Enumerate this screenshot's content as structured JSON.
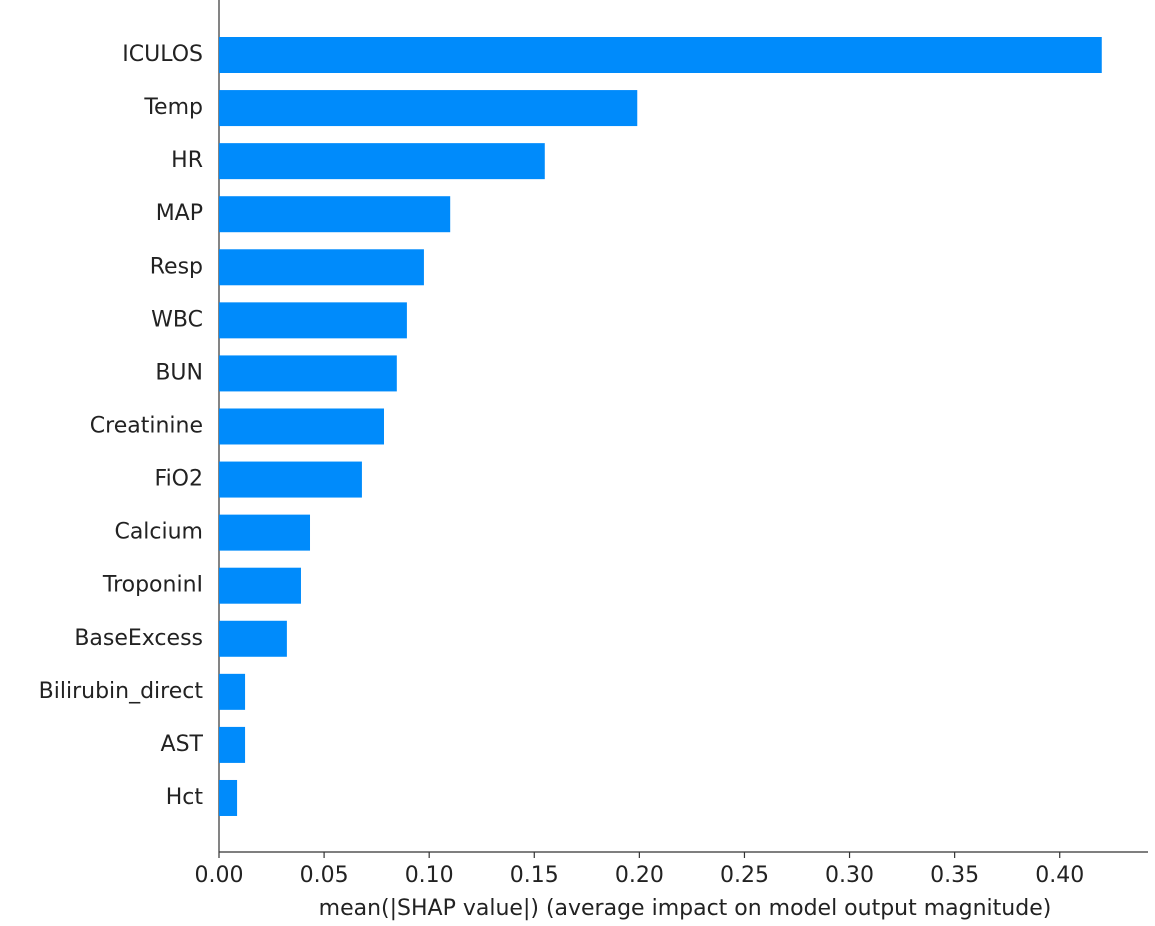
{
  "chart_data": {
    "type": "bar",
    "orientation": "horizontal",
    "xlabel": "mean(|SHAP value|) (average impact on model output magnitude)",
    "categories": [
      "ICULOS",
      "Temp",
      "HR",
      "MAP",
      "Resp",
      "WBC",
      "BUN",
      "Creatinine",
      "FiO2",
      "Calcium",
      "TroponinI",
      "BaseExcess",
      "Bilirubin_direct",
      "AST",
      "Hct"
    ],
    "values": [
      0.42,
      0.199,
      0.155,
      0.11,
      0.0975,
      0.0894,
      0.0846,
      0.0785,
      0.068,
      0.0433,
      0.039,
      0.0323,
      0.0124,
      0.0124,
      0.0086
    ],
    "color": "#008bfb",
    "xlim": [
      0,
      0.442
    ],
    "xticks": [
      {
        "value": 0,
        "label": "0.00"
      },
      {
        "value": 0.05,
        "label": "0.05"
      },
      {
        "value": 0.1,
        "label": "0.10"
      },
      {
        "value": 0.15,
        "label": "0.15"
      },
      {
        "value": 0.2,
        "label": "0.20"
      },
      {
        "value": 0.25,
        "label": "0.25"
      },
      {
        "value": 0.3,
        "label": "0.30"
      },
      {
        "value": 0.35,
        "label": "0.35"
      },
      {
        "value": 0.4,
        "label": "0.40"
      }
    ],
    "grid": false
  }
}
